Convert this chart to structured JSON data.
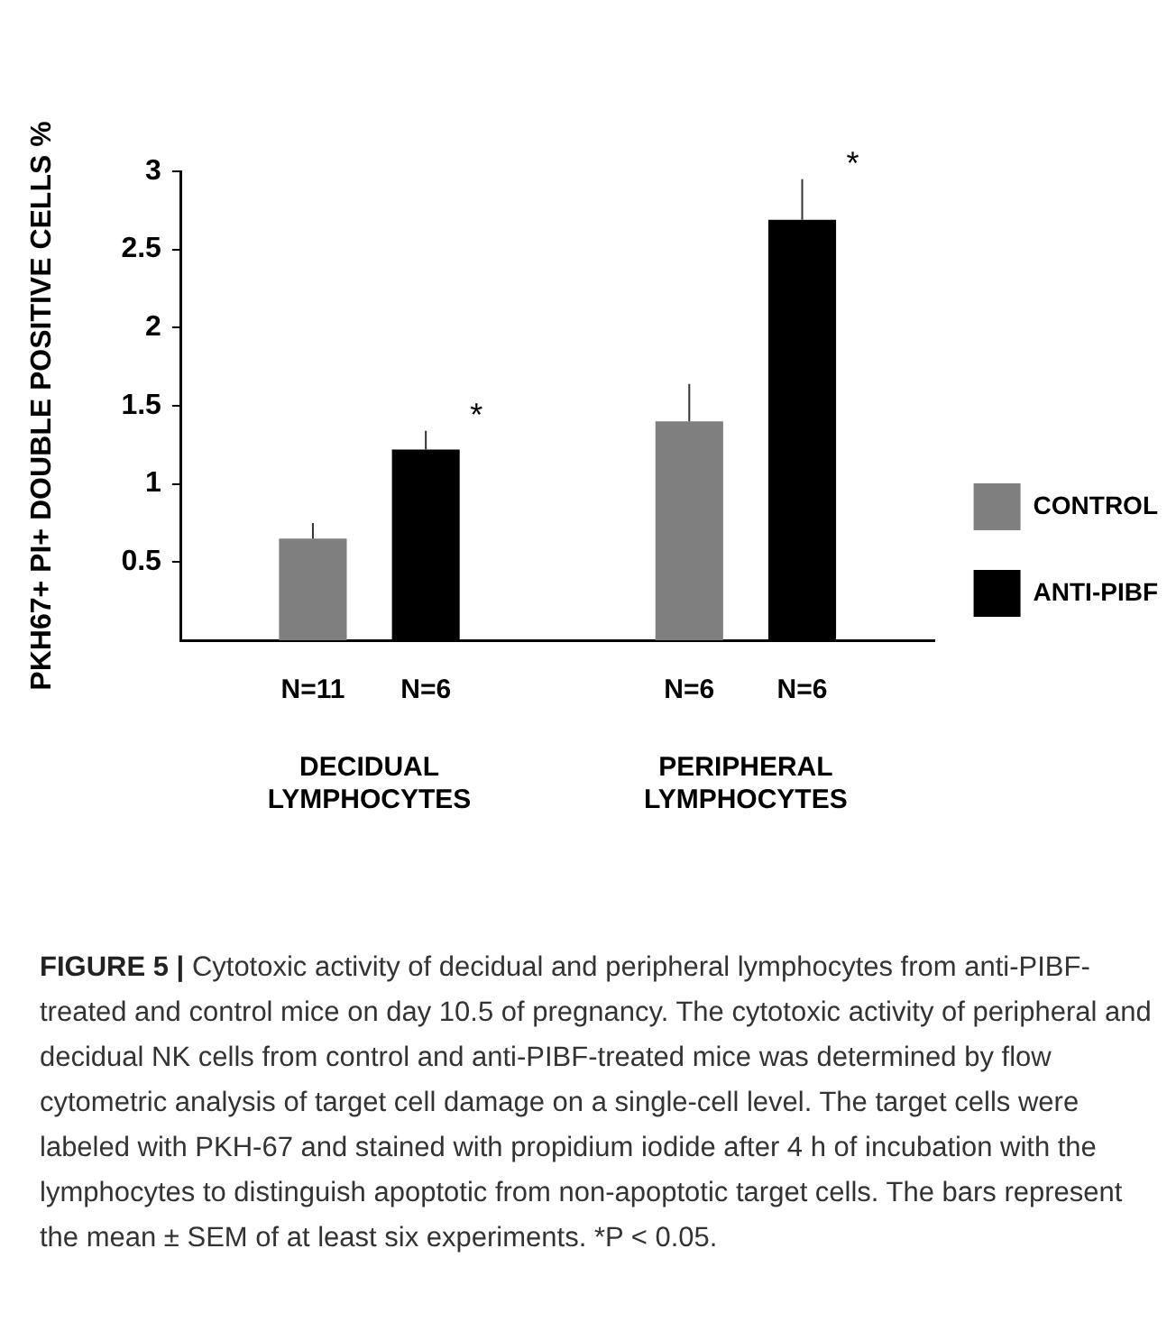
{
  "chart_data": {
    "type": "bar",
    "title": "FIGURE 5 |",
    "ylabel": "PKH67+ PI+ DOUBLE POSITIVE CELLS %",
    "categories": [
      "DECIDUAL LYMPHOCYTES",
      "PERIPHERAL LYMPHOCYTES"
    ],
    "series": [
      {
        "name": "CONTROL",
        "color": "#7f7f7f",
        "values": [
          0.65,
          1.4
        ],
        "errors": [
          [
            0.65,
            0.75
          ],
          [
            1.4,
            1.64
          ]
        ]
      },
      {
        "name": "ANTI-PIBF",
        "color": "#000000",
        "values": [
          1.22,
          2.69
        ],
        "errors": [
          [
            1.22,
            1.34
          ],
          [
            2.69,
            2.95
          ]
        ]
      }
    ],
    "ylim": [
      0,
      3
    ],
    "yticks": [
      0.5,
      1,
      1.5,
      2,
      2.5,
      3
    ],
    "grid": false,
    "legend": "right",
    "annotations": [
      "N=11",
      "N=6",
      "N=6",
      "N=6",
      "*",
      "*",
      "Cytotoxic activity of decidual and peripheral lymphocytes from anti-PIBF-treated and control mice on day 10.5 of pregnancy. The cytotoxic activity of peripheral and decidual NK cells from control and anti-PIBF-treated mice was determined by flow cytometric analysis of target cell damage on a single-cell level. The target cells were labeled with PKH-67 and stained with propidium iodide after 4 h of incubation with the lymphocytes to distinguish apoptotic from non-apoptotic target cells. The bars represent the mean ± SEM of at least six experiments. *P < 0.05."
    ]
  }
}
